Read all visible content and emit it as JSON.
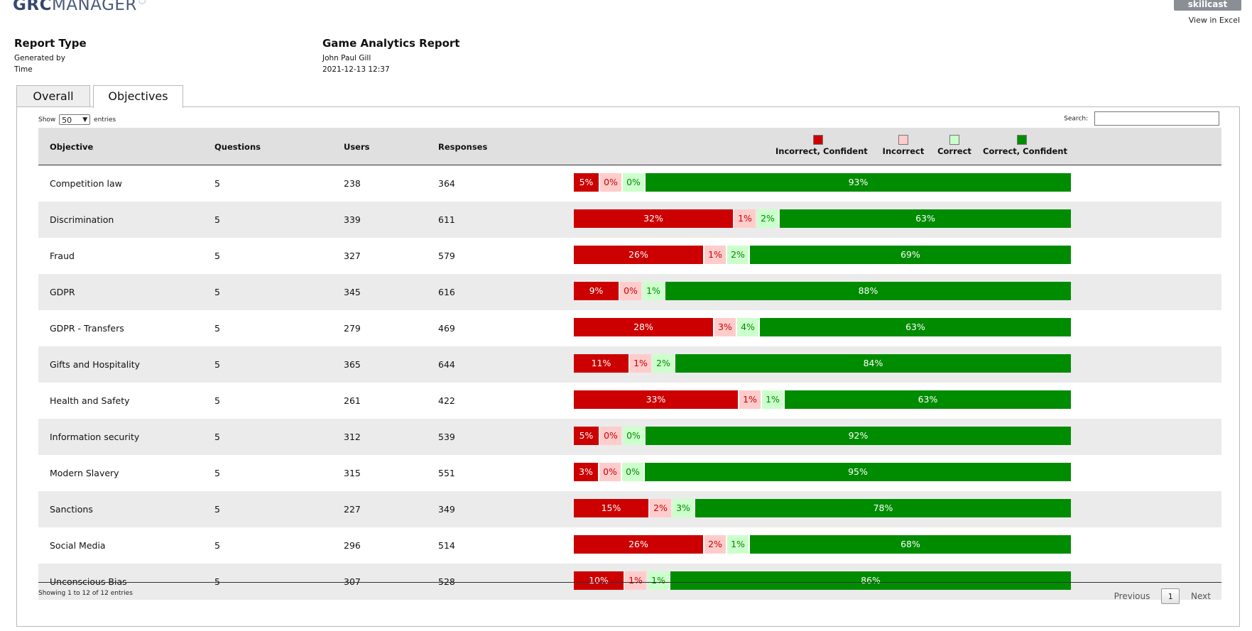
{
  "header": {
    "logo_bold": "GRC",
    "logo_rest": "MANAGER",
    "brand": "skillcast",
    "excel_link": "View in Excel"
  },
  "meta": {
    "report_type_label": "Report Type",
    "generated_by_label": "Generated by",
    "time_label": "Time",
    "report_type_value": "Game Analytics Report",
    "generated_by_value": "John Paul Gill",
    "time_value": "2021-12-13 12:37"
  },
  "tabs": [
    "Overall",
    "Objectives"
  ],
  "controls": {
    "show_label": "Show",
    "entries_value": "50",
    "entries_label": "entries",
    "search_label": "Search:",
    "search_value": ""
  },
  "columns": [
    "Objective",
    "Questions",
    "Users",
    "Responses"
  ],
  "legend": [
    {
      "label": "Incorrect, Confident",
      "color": "#cc0000"
    },
    {
      "label": "Incorrect",
      "color": "#ffcccc"
    },
    {
      "label": "Correct",
      "color": "#ccffcc"
    },
    {
      "label": "Correct, Confident",
      "color": "#008c00"
    }
  ],
  "segment_colors": {
    "incorrect_confident": {
      "bg": "#cc0000",
      "fg": "#ffffff"
    },
    "incorrect": {
      "bg": "#ffcccc",
      "fg": "#cc0000"
    },
    "correct": {
      "bg": "#ccffcc",
      "fg": "#008800"
    },
    "correct_confident": {
      "bg": "#008c00",
      "fg": "#ffffff"
    }
  },
  "rows": [
    {
      "objective": "Competition law",
      "questions": "5",
      "users": "238",
      "responses": "364",
      "ic": 5,
      "i": 0,
      "c": 0,
      "cc": 93
    },
    {
      "objective": "Discrimination",
      "questions": "5",
      "users": "339",
      "responses": "611",
      "ic": 32,
      "i": 1,
      "c": 2,
      "cc": 63
    },
    {
      "objective": "Fraud",
      "questions": "5",
      "users": "327",
      "responses": "579",
      "ic": 26,
      "i": 1,
      "c": 2,
      "cc": 69
    },
    {
      "objective": "GDPR",
      "questions": "5",
      "users": "345",
      "responses": "616",
      "ic": 9,
      "i": 0,
      "c": 1,
      "cc": 88
    },
    {
      "objective": "GDPR - Transfers",
      "questions": "5",
      "users": "279",
      "responses": "469",
      "ic": 28,
      "i": 3,
      "c": 4,
      "cc": 63
    },
    {
      "objective": "Gifts and Hospitality",
      "questions": "5",
      "users": "365",
      "responses": "644",
      "ic": 11,
      "i": 1,
      "c": 2,
      "cc": 84
    },
    {
      "objective": "Health and Safety",
      "questions": "5",
      "users": "261",
      "responses": "422",
      "ic": 33,
      "i": 1,
      "c": 1,
      "cc": 63
    },
    {
      "objective": "Information security",
      "questions": "5",
      "users": "312",
      "responses": "539",
      "ic": 5,
      "i": 0,
      "c": 0,
      "cc": 92
    },
    {
      "objective": "Modern Slavery",
      "questions": "5",
      "users": "315",
      "responses": "551",
      "ic": 3,
      "i": 0,
      "c": 0,
      "cc": 95
    },
    {
      "objective": "Sanctions",
      "questions": "5",
      "users": "227",
      "responses": "349",
      "ic": 15,
      "i": 2,
      "c": 3,
      "cc": 78
    },
    {
      "objective": "Social Media",
      "questions": "5",
      "users": "296",
      "responses": "514",
      "ic": 26,
      "i": 2,
      "c": 1,
      "cc": 68
    },
    {
      "objective": "Unconscious Bias",
      "questions": "5",
      "users": "307",
      "responses": "528",
      "ic": 10,
      "i": 1,
      "c": 1,
      "cc": 86
    }
  ],
  "footer": {
    "info": "Showing 1 to 12 of 12 entries",
    "previous": "Previous",
    "page": "1",
    "next": "Next"
  }
}
